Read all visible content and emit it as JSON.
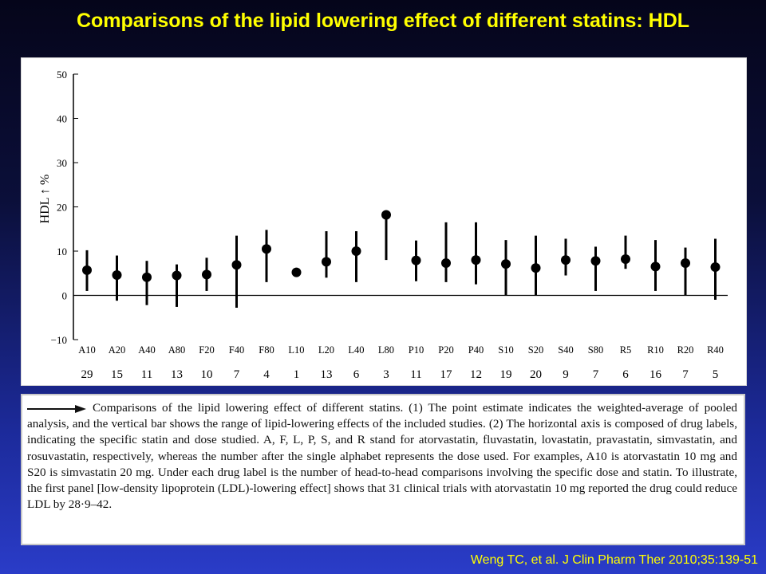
{
  "slide": {
    "title": "Comparisons of the lipid lowering effect of different statins: HDL",
    "citation": "Weng TC, et al. J Clin Pharm Ther 2010;35:139-51"
  },
  "caption": "Comparisons of the lipid lowering effect of different statins. (1) The point estimate indicates the weighted-average of pooled analysis, and the vertical bar shows the range of lipid-lowering effects of the included studies. (2) The horizontal axis is composed of drug labels, indicating the specific statin and dose studied. A, F, L, P, S, and R stand for atorvastatin, fluvastatin, lovastatin, pravastatin, simvastatin, and rosuvastatin, respectively, whereas the number after the single alphabet represents the dose used. For examples, A10 is atorvastatin 10 mg and S20 is simvastatin 20 mg. Under each drug label is the number of head-to-head comparisons involving the specific dose and statin. To illustrate, the first panel [low-density lipoprotein (LDL)-lowering effect] shows that 31 clinical trials with atorvastatin 10 mg reported the drug could reduce LDL by 28·9–42.",
  "chart_data": {
    "type": "scatter",
    "title": "",
    "ylabel": "HDL ↑ %",
    "xlabel": "",
    "ylim": [
      -10,
      50
    ],
    "yticks": [
      -10,
      0,
      10,
      20,
      30,
      40,
      50
    ],
    "ytick_labels": [
      "−10",
      "0",
      "10",
      "20",
      "30",
      "40",
      "50"
    ],
    "categories": [
      "A10",
      "A20",
      "A40",
      "A80",
      "F20",
      "F40",
      "F80",
      "L10",
      "L20",
      "L40",
      "L80",
      "P10",
      "P20",
      "P40",
      "S10",
      "S20",
      "S40",
      "S80",
      "R5",
      "R10",
      "R20",
      "R40"
    ],
    "counts": [
      "29",
      "15",
      "11",
      "13",
      "10",
      "7",
      "4",
      "1",
      "13",
      "6",
      "3",
      "11",
      "17",
      "12",
      "19",
      "20",
      "9",
      "7",
      "6",
      "16",
      "7",
      "5"
    ],
    "points": [
      {
        "label": "A10",
        "estimate": 5.7,
        "low": 1.0,
        "high": 10.2
      },
      {
        "label": "A20",
        "estimate": 4.6,
        "low": -1.2,
        "high": 9.0
      },
      {
        "label": "A40",
        "estimate": 4.1,
        "low": -2.2,
        "high": 7.8
      },
      {
        "label": "A80",
        "estimate": 4.5,
        "low": -2.6,
        "high": 7.0
      },
      {
        "label": "F20",
        "estimate": 4.7,
        "low": 1.0,
        "high": 8.5
      },
      {
        "label": "F40",
        "estimate": 6.9,
        "low": -2.8,
        "high": 13.5
      },
      {
        "label": "F80",
        "estimate": 10.5,
        "low": 3.0,
        "high": 14.8
      },
      {
        "label": "L10",
        "estimate": 5.2,
        "low": 5.2,
        "high": 5.2
      },
      {
        "label": "L20",
        "estimate": 7.6,
        "low": 4.0,
        "high": 14.5
      },
      {
        "label": "L40",
        "estimate": 10.0,
        "low": 3.0,
        "high": 14.5
      },
      {
        "label": "L80",
        "estimate": 18.2,
        "low": 8.0,
        "high": 19.0
      },
      {
        "label": "P10",
        "estimate": 7.9,
        "low": 3.2,
        "high": 12.4
      },
      {
        "label": "P20",
        "estimate": 7.3,
        "low": 3.0,
        "high": 16.5
      },
      {
        "label": "P40",
        "estimate": 8.0,
        "low": 2.5,
        "high": 16.5
      },
      {
        "label": "S10",
        "estimate": 7.1,
        "low": 0.0,
        "high": 12.5
      },
      {
        "label": "S20",
        "estimate": 6.2,
        "low": 0.0,
        "high": 13.5
      },
      {
        "label": "S40",
        "estimate": 8.0,
        "low": 4.5,
        "high": 12.8
      },
      {
        "label": "S80",
        "estimate": 7.8,
        "low": 1.0,
        "high": 11.0
      },
      {
        "label": "R5",
        "estimate": 8.2,
        "low": 6.0,
        "high": 13.5
      },
      {
        "label": "R10",
        "estimate": 6.5,
        "low": 1.0,
        "high": 12.5
      },
      {
        "label": "R20",
        "estimate": 7.3,
        "low": 0.0,
        "high": 10.8
      },
      {
        "label": "R40",
        "estimate": 6.4,
        "low": -1.0,
        "high": 12.8
      }
    ],
    "grid": false,
    "legend": "none"
  },
  "colors": {
    "title": "#ffff00",
    "citation": "#ffff00",
    "marks": "#000000"
  }
}
